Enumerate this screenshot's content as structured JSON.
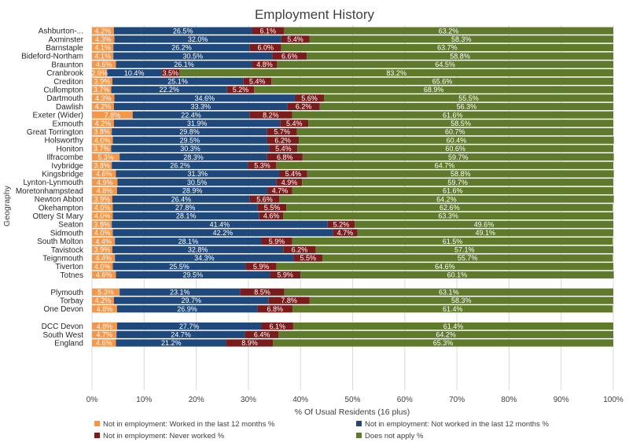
{
  "chart_data": {
    "type": "bar",
    "orientation": "horizontal",
    "stacked": "percent",
    "title": "Employment History",
    "xlabel": "% Of Usual Residents (16 plus)",
    "ylabel": "Geography",
    "xlim": [
      0,
      100
    ],
    "x_ticks": [
      "0%",
      "10%",
      "20%",
      "30%",
      "40%",
      "50%",
      "60%",
      "70%",
      "80%",
      "90%",
      "100%"
    ],
    "grid": true,
    "legend_position": "bottom",
    "groups": [
      [
        "Ashburton-...",
        "Axminster",
        "Barnstaple",
        "Bideford-Northam",
        "Braunton",
        "Cranbrook",
        "Crediton",
        "Cullompton",
        "Dartmouth",
        "Dawlish",
        "Exeter (Wider)",
        "Exmouth",
        "Great Torrington",
        "Holsworthy",
        "Honiton",
        "Ilfracombe",
        "Ivybridge",
        "Kingsbridge",
        "Lynton-Lynmouth",
        "Moretonhampstead",
        "Newton Abbot",
        "Okehampton",
        "Ottery St Mary",
        "Seaton",
        "Sidmouth",
        "South Molton",
        "Tavistock",
        "Teignmouth",
        "Tiverton",
        "Totnes"
      ],
      [
        "Plymouth",
        "Torbay",
        "One Devon"
      ],
      [
        "DCC Devon",
        "South West",
        "England"
      ]
    ],
    "categories": [
      "Ashburton-...",
      "Axminster",
      "Barnstaple",
      "Bideford-Northam",
      "Braunton",
      "Cranbrook",
      "Crediton",
      "Cullompton",
      "Dartmouth",
      "Dawlish",
      "Exeter (Wider)",
      "Exmouth",
      "Great Torrington",
      "Holsworthy",
      "Honiton",
      "Ilfracombe",
      "Ivybridge",
      "Kingsbridge",
      "Lynton-Lynmouth",
      "Moretonhampstead",
      "Newton Abbot",
      "Okehampton",
      "Ottery St Mary",
      "Seaton",
      "Sidmouth",
      "South Molton",
      "Tavistock",
      "Teignmouth",
      "Tiverton",
      "Totnes",
      "Plymouth",
      "Torbay",
      "One Devon",
      "DCC Devon",
      "South West",
      "England"
    ],
    "series": [
      {
        "name": "Not in employment: Worked in the last 12 months %",
        "color": "#f79646",
        "values": [
          4.2,
          4.3,
          4.1,
          4.1,
          4.6,
          2.9,
          3.9,
          3.7,
          4.3,
          4.2,
          7.8,
          4.2,
          3.8,
          4.0,
          3.7,
          5.3,
          3.8,
          4.6,
          4.9,
          4.8,
          3.9,
          4.0,
          4.0,
          3.8,
          4.0,
          4.4,
          3.9,
          4.4,
          4.0,
          4.6,
          5.3,
          4.2,
          4.8,
          4.8,
          4.7,
          4.6
        ]
      },
      {
        "name": "Not in employment: Not worked in the last 12 months %",
        "color": "#1f497d",
        "values": [
          26.5,
          32.0,
          26.2,
          30.5,
          26.1,
          10.4,
          25.1,
          22.2,
          34.6,
          33.3,
          22.4,
          31.9,
          29.8,
          29.5,
          30.3,
          28.3,
          26.2,
          31.3,
          30.5,
          28.9,
          26.4,
          27.8,
          28.1,
          41.4,
          42.2,
          28.1,
          32.8,
          34.3,
          25.5,
          29.5,
          23.1,
          29.7,
          26.9,
          27.7,
          24.7,
          21.2
        ]
      },
      {
        "name": "Not in employment: Never worked %",
        "color": "#7b1c1c",
        "values": [
          6.1,
          5.4,
          6.0,
          6.6,
          4.8,
          3.5,
          5.4,
          5.2,
          5.6,
          6.2,
          8.2,
          5.4,
          5.7,
          6.2,
          5.4,
          6.8,
          5.3,
          5.4,
          4.9,
          4.7,
          5.6,
          5.5,
          4.6,
          5.2,
          4.7,
          5.9,
          6.2,
          5.5,
          5.9,
          5.9,
          8.5,
          7.8,
          6.8,
          6.1,
          6.4,
          8.9
        ]
      },
      {
        "name": "Does not apply %",
        "color": "#5f7a2a",
        "values": [
          63.2,
          58.3,
          63.7,
          58.8,
          64.5,
          83.2,
          65.6,
          68.9,
          55.5,
          56.3,
          61.6,
          58.5,
          60.7,
          60.4,
          60.6,
          59.7,
          64.7,
          58.8,
          59.7,
          61.6,
          64.2,
          62.6,
          63.3,
          49.6,
          49.1,
          61.5,
          57.1,
          55.7,
          64.6,
          60.1,
          63.1,
          58.3,
          61.4,
          61.4,
          64.2,
          65.3
        ]
      }
    ]
  }
}
